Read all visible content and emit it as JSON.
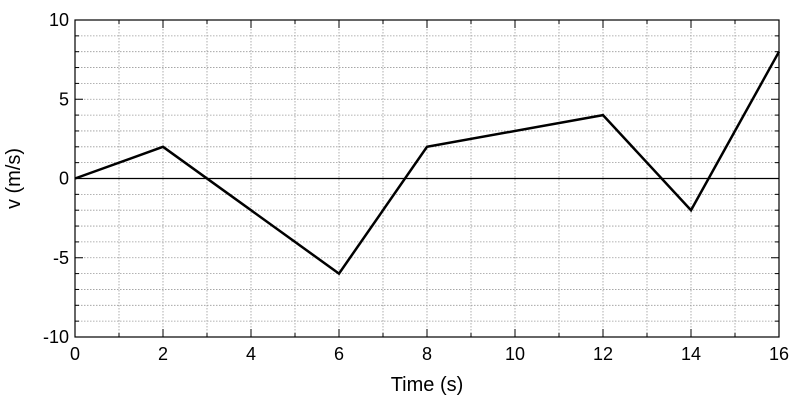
{
  "chart_data": {
    "type": "line",
    "xlabel": "Time (s)",
    "ylabel": "v (m/s)",
    "xlim": [
      0,
      16
    ],
    "ylim": [
      -10,
      10
    ],
    "x_ticks": [
      0,
      2,
      4,
      6,
      8,
      10,
      12,
      14,
      16
    ],
    "y_ticks": [
      10,
      5,
      0,
      -5,
      -10
    ],
    "x_tick_labels": [
      "0",
      "2",
      "4",
      "6",
      "8",
      "10",
      "12",
      "14",
      "16"
    ],
    "y_tick_labels": [
      "10",
      "5",
      "0",
      "-5",
      "-10"
    ],
    "x_minor_step": 1,
    "y_minor_step": 1,
    "grid": true,
    "series": [
      {
        "x": [
          0,
          2,
          6,
          8,
          12,
          14,
          16
        ],
        "y": [
          0,
          2,
          -6,
          2,
          4,
          -2,
          8
        ],
        "color": "#000000"
      }
    ],
    "colors": {
      "grid": "#9a9a9a",
      "zero_line": "#000000",
      "frame": "#000000"
    }
  }
}
